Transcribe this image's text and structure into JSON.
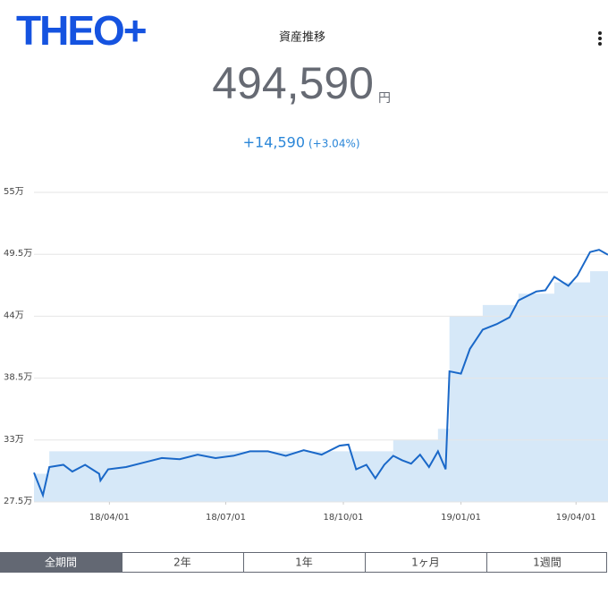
{
  "header": {
    "logo": "THEO+",
    "title": "資産推移"
  },
  "summary": {
    "value": "494,590",
    "unit": "円",
    "change": "+14,590",
    "change_pct": "(+3.04%)"
  },
  "chart_data": {
    "type": "line",
    "x": [
      "18/02/01",
      "18/02/08",
      "18/02/13",
      "18/02/24",
      "18/03/03",
      "18/03/13",
      "18/03/24",
      "18/03/25",
      "18/03/31",
      "18/04/14",
      "18/04/28",
      "18/05/12",
      "18/05/26",
      "18/06/09",
      "18/06/23",
      "18/07/07",
      "18/07/20",
      "18/08/03",
      "18/08/17",
      "18/08/31",
      "18/09/14",
      "18/09/28",
      "18/10/05",
      "18/10/11",
      "18/10/19",
      "18/10/26",
      "18/11/02",
      "18/11/09",
      "18/11/16",
      "18/11/23",
      "18/11/30",
      "18/12/07",
      "18/12/14",
      "18/12/20",
      "18/12/23",
      "19/01/01",
      "19/01/08",
      "19/01/18",
      "19/01/29",
      "19/02/08",
      "19/02/15",
      "19/03/01",
      "19/03/08",
      "19/03/15",
      "19/03/26",
      "19/04/02",
      "19/04/12",
      "19/04/19",
      "19/04/26"
    ],
    "series": [
      {
        "color": "#d6e8f8",
        "style": "step-area",
        "values": [
          30,
          30,
          32,
          32,
          32,
          32,
          32,
          32,
          32,
          32,
          32,
          32,
          32,
          32,
          32,
          32,
          32,
          32,
          32,
          32,
          32,
          32,
          32,
          32,
          32,
          32,
          32,
          33,
          33,
          33,
          33,
          33,
          34,
          34,
          44,
          44,
          44,
          45,
          45,
          45,
          46,
          46,
          46,
          47,
          47,
          47,
          48,
          48,
          48
        ]
      },
      {
        "color": "#1a68c8",
        "style": "line",
        "values": [
          30.1,
          28.1,
          30.6,
          30.8,
          30.2,
          30.8,
          30.0,
          29.4,
          30.4,
          30.6,
          31.0,
          31.4,
          31.3,
          31.7,
          31.4,
          31.6,
          32.0,
          32.0,
          31.6,
          32.1,
          31.7,
          32.5,
          32.6,
          30.4,
          30.8,
          29.6,
          30.8,
          31.6,
          31.2,
          30.9,
          31.7,
          30.6,
          32.0,
          30.4,
          39.1,
          38.9,
          41.1,
          42.8,
          43.3,
          43.9,
          45.4,
          46.2,
          46.3,
          47.5,
          46.7,
          47.6,
          49.7,
          49.9,
          49.459
        ]
      }
    ],
    "xlim": [
      "18/02/01",
      "19/04/26"
    ],
    "xticks": [
      "18/04/01",
      "18/07/01",
      "18/10/01",
      "19/01/01",
      "19/04/01"
    ],
    "ylim": [
      27.5,
      55
    ],
    "yticks": [
      {
        "value": 27.5,
        "label": "27.5万"
      },
      {
        "value": 33,
        "label": "33万"
      },
      {
        "value": 38.5,
        "label": "38.5万"
      },
      {
        "value": 44,
        "label": "44万"
      },
      {
        "value": 49.5,
        "label": "49.5万"
      },
      {
        "value": 55,
        "label": "55万"
      }
    ],
    "grid": true
  },
  "tabs": {
    "items": [
      "全期間",
      "2年",
      "1年",
      "1ヶ月",
      "1週間"
    ],
    "selected": 0
  }
}
